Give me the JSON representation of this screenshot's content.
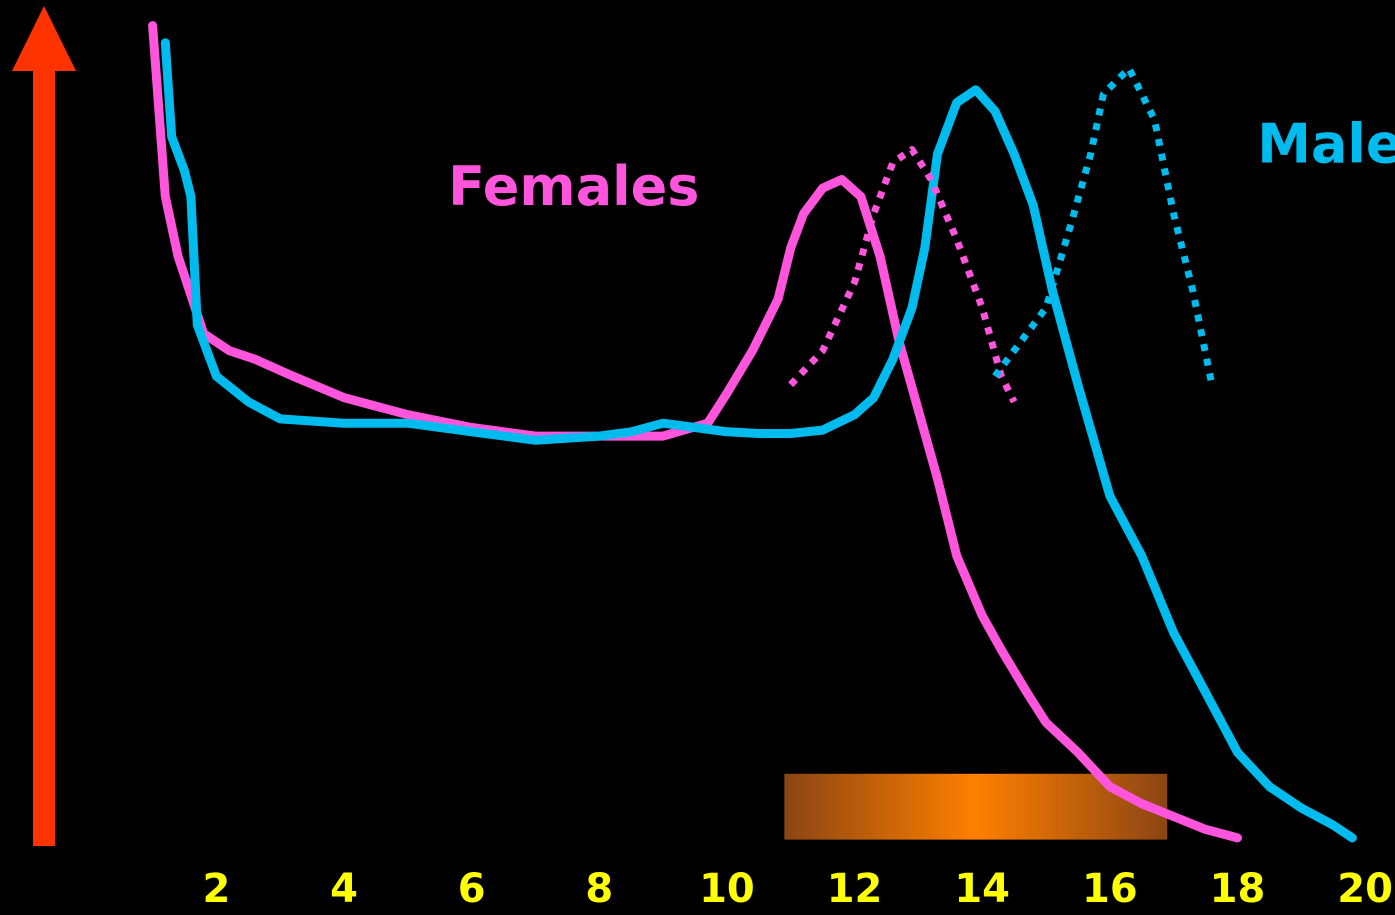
{
  "colors": {
    "background": "#000000",
    "axis_arrow": "#ff3300",
    "females": "#ff55dd",
    "males": "#00bbee",
    "tick_labels": "#ffff00",
    "band_center": "#ff7f00",
    "band_edge": "#8b4513"
  },
  "chart_data": {
    "type": "line",
    "xlim": [
      -0.2,
      20.5
    ],
    "ylim": [
      0,
      100
    ],
    "x_ticks": [
      2,
      4,
      6,
      8,
      10,
      12,
      14,
      16,
      18,
      20
    ],
    "x_tick_labels": [
      "2",
      "4",
      "6",
      "8",
      "10",
      "12",
      "14",
      "16",
      "18",
      "20"
    ],
    "y_axis": "upward arrow, no tick labels",
    "band": {
      "x_start": 10.9,
      "x_end": 16.9,
      "y_bottom": 1.8,
      "y_top": 9.5
    },
    "series": [
      {
        "name": "Females",
        "style": "solid",
        "color": "#ff55dd",
        "x": [
          1.0,
          1.2,
          1.4,
          1.8,
          2.2,
          2.6,
          3.2,
          4.0,
          5.0,
          6.0,
          7.0,
          8.0,
          9.0,
          9.7,
          10.0,
          10.4,
          10.8,
          11.0,
          11.2,
          11.5,
          11.8,
          12.1,
          12.4,
          12.7,
          13.0,
          13.3,
          13.6,
          14.0,
          14.3,
          14.7,
          15.0,
          15.5,
          16.0,
          16.5,
          17.0,
          17.5,
          18.0
        ],
        "y": [
          97,
          77,
          70,
          61,
          59,
          58,
          56,
          53.5,
          51.5,
          50,
          49,
          49,
          49,
          50.5,
          54,
          59,
          65,
          71,
          75,
          78,
          79,
          77,
          70,
          60,
          52,
          44,
          35,
          28,
          24,
          19,
          15.5,
          12,
          8,
          6,
          4.5,
          3,
          2
        ]
      },
      {
        "name": "Males",
        "style": "solid",
        "color": "#00bbee",
        "x": [
          1.2,
          1.3,
          1.5,
          1.6,
          1.7,
          2.0,
          2.5,
          3.0,
          4.0,
          5.0,
          6.0,
          7.0,
          8.0,
          8.5,
          9.0,
          9.5,
          10.0,
          10.5,
          11.0,
          11.5,
          12.0,
          12.3,
          12.6,
          12.9,
          13.1,
          13.3,
          13.6,
          13.9,
          14.2,
          14.5,
          14.8,
          15.1,
          15.5,
          16.0,
          16.5,
          17.0,
          17.5,
          18.0,
          18.5,
          19.0,
          19.5,
          19.8
        ],
        "y": [
          95,
          84,
          80,
          77,
          62,
          56,
          53,
          51,
          50.5,
          50.5,
          49.5,
          48.5,
          49,
          49.5,
          50.5,
          50,
          49.5,
          49.3,
          49.3,
          49.7,
          51.5,
          53.5,
          58,
          64,
          71,
          82,
          88,
          89.5,
          87,
          82,
          76,
          66,
          55,
          42,
          35,
          26,
          19,
          12,
          8,
          5.5,
          3.5,
          2
        ]
      },
      {
        "name": "Females (dotted)",
        "style": "dotted",
        "color": "#ff55dd",
        "x": [
          11.0,
          11.5,
          12.0,
          12.3,
          12.6,
          12.9,
          13.2,
          13.6,
          14.0,
          14.3,
          14.5
        ],
        "y": [
          55,
          59,
          67,
          75,
          81,
          82.5,
          79,
          72,
          64,
          56,
          53
        ]
      },
      {
        "name": "Males (dotted)",
        "style": "dotted",
        "color": "#00bbee",
        "x": [
          14.2,
          14.6,
          15.0,
          15.4,
          15.7,
          15.9,
          16.3,
          16.7,
          17.0,
          17.3,
          17.6
        ],
        "y": [
          56,
          60,
          64,
          74,
          82,
          89,
          92,
          86,
          75,
          66,
          55
        ]
      }
    ],
    "annotations": [
      {
        "text": "Females",
        "color": "#ff55dd",
        "x": 7.6,
        "y": 76
      },
      {
        "text": "Males",
        "color": "#00bbee",
        "x": 19.7,
        "y": 81
      }
    ]
  }
}
